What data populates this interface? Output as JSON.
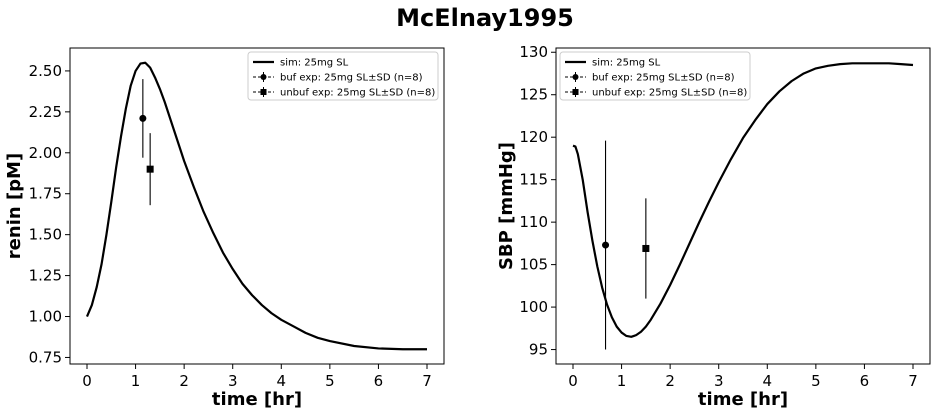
{
  "figure": {
    "title": "McElnay1995"
  },
  "chart_data": [
    {
      "type": "line",
      "xlabel": "time [hr]",
      "ylabel": "renin [pM]",
      "xlim": [
        -0.35,
        7.35
      ],
      "ylim": [
        0.71,
        2.64
      ],
      "xticks": [
        0,
        1,
        2,
        3,
        4,
        5,
        6,
        7
      ],
      "yticks": [
        0.75,
        1.0,
        1.25,
        1.5,
        1.75,
        2.0,
        2.25,
        2.5
      ],
      "ytick_decimals": 2,
      "grid": false,
      "legend_position": "upper-right",
      "series": [
        {
          "name": "sim: 25mg SL",
          "kind": "line",
          "x": [
            0,
            0.1,
            0.2,
            0.3,
            0.4,
            0.5,
            0.6,
            0.7,
            0.8,
            0.9,
            1.0,
            1.1,
            1.2,
            1.3,
            1.4,
            1.5,
            1.6,
            1.7,
            1.8,
            1.9,
            2.0,
            2.2,
            2.4,
            2.6,
            2.8,
            3.0,
            3.2,
            3.4,
            3.6,
            3.8,
            4.0,
            4.25,
            4.5,
            4.75,
            5.0,
            5.5,
            6.0,
            6.5,
            7.0
          ],
          "y": [
            1.0,
            1.07,
            1.18,
            1.32,
            1.5,
            1.7,
            1.91,
            2.1,
            2.27,
            2.41,
            2.5,
            2.545,
            2.55,
            2.52,
            2.46,
            2.39,
            2.31,
            2.22,
            2.13,
            2.04,
            1.95,
            1.79,
            1.64,
            1.51,
            1.39,
            1.29,
            1.2,
            1.13,
            1.07,
            1.02,
            0.98,
            0.94,
            0.9,
            0.87,
            0.85,
            0.82,
            0.805,
            0.8,
            0.8
          ]
        },
        {
          "name": "buf exp: 25mg SL±SD (n=8)",
          "kind": "errorbar",
          "marker": "circle",
          "x": [
            1.15
          ],
          "y": [
            2.21
          ],
          "yerr": [
            0.24
          ]
        },
        {
          "name": "unbuf exp: 25mg SL±SD (n=8)",
          "kind": "errorbar",
          "marker": "square",
          "x": [
            1.3
          ],
          "y": [
            1.9
          ],
          "yerr": [
            0.22
          ]
        }
      ]
    },
    {
      "type": "line",
      "xlabel": "time [hr]",
      "ylabel": "SBP [mmHg]",
      "xlim": [
        -0.35,
        7.35
      ],
      "ylim": [
        93.3,
        130.5
      ],
      "xticks": [
        0,
        1,
        2,
        3,
        4,
        5,
        6,
        7
      ],
      "yticks": [
        95,
        100,
        105,
        110,
        115,
        120,
        125,
        130
      ],
      "ytick_decimals": 0,
      "grid": false,
      "legend_position": "upper-left",
      "series": [
        {
          "name": "sim: 25mg SL",
          "kind": "line",
          "x": [
            0,
            0.05,
            0.1,
            0.2,
            0.3,
            0.4,
            0.5,
            0.6,
            0.7,
            0.8,
            0.9,
            1.0,
            1.1,
            1.2,
            1.3,
            1.4,
            1.5,
            1.6,
            1.8,
            2.0,
            2.2,
            2.4,
            2.6,
            2.8,
            3.0,
            3.25,
            3.5,
            3.75,
            4.0,
            4.25,
            4.5,
            4.75,
            5.0,
            5.25,
            5.5,
            5.75,
            6.0,
            6.25,
            6.5,
            6.75,
            7.0
          ],
          "y": [
            119.0,
            118.9,
            118.0,
            115.0,
            111.2,
            107.8,
            104.8,
            102.3,
            100.3,
            98.8,
            97.7,
            97.0,
            96.6,
            96.5,
            96.7,
            97.1,
            97.7,
            98.5,
            100.4,
            102.6,
            105.0,
            107.5,
            110.0,
            112.4,
            114.7,
            117.4,
            119.9,
            122.0,
            123.9,
            125.4,
            126.6,
            127.5,
            128.1,
            128.4,
            128.6,
            128.7,
            128.7,
            128.7,
            128.7,
            128.6,
            128.5
          ]
        },
        {
          "name": "buf exp: 25mg SL±SD (n=8)",
          "kind": "errorbar",
          "marker": "circle",
          "x": [
            0.67
          ],
          "y": [
            107.3
          ],
          "yerr": [
            12.3
          ]
        },
        {
          "name": "unbuf exp: 25mg SL±SD (n=8)",
          "kind": "errorbar",
          "marker": "square",
          "x": [
            1.5
          ],
          "y": [
            106.9
          ],
          "yerr": [
            5.9
          ]
        }
      ]
    }
  ]
}
